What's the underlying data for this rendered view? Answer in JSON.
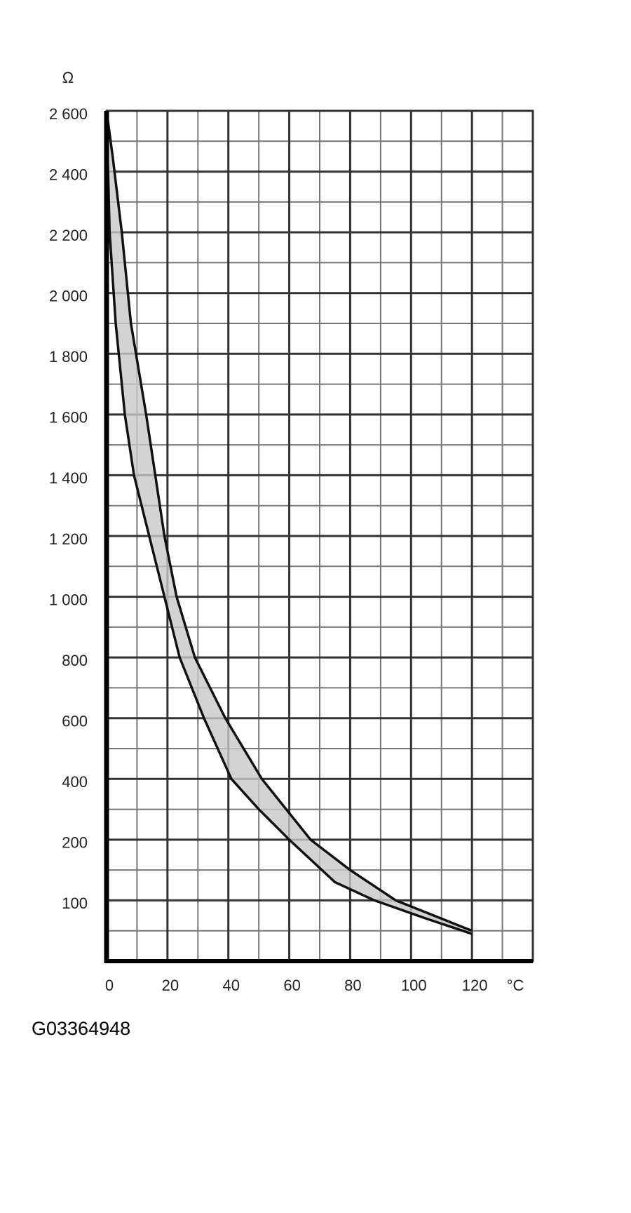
{
  "chart_data": {
    "type": "line",
    "y_unit": "Ω",
    "x_unit": "°C",
    "x_series": [
      {
        "name": "upper",
        "color": "#111111",
        "x": [
          0,
          2,
          5,
          8,
          13,
          19,
          23,
          29,
          39,
          51,
          67,
          80,
          95,
          110,
          120
        ],
        "values": [
          2600,
          2450,
          2200,
          1900,
          1600,
          1200,
          1000,
          800,
          600,
          400,
          200,
          150,
          100,
          70,
          50
        ]
      },
      {
        "name": "lower",
        "color": "#111111",
        "x": [
          0,
          1,
          3,
          6,
          9,
          14,
          19,
          24,
          32,
          41,
          50,
          60,
          75,
          88,
          105,
          120
        ],
        "values": [
          2600,
          2200,
          1900,
          1600,
          1400,
          1200,
          1000,
          800,
          600,
          400,
          300,
          200,
          130,
          100,
          70,
          45
        ]
      }
    ],
    "band_color": "#c8c8c8",
    "xlim": [
      0,
      140
    ],
    "xticks": [
      0,
      20,
      40,
      60,
      80,
      100,
      120
    ],
    "ylim": [
      0,
      2600
    ],
    "yticks": [
      100,
      200,
      400,
      600,
      800,
      {
        "value": 1000,
        "label": "1 000"
      },
      {
        "value": 1200,
        "label": "1 200"
      },
      {
        "value": 1400,
        "label": "1 400"
      },
      {
        "value": 1600,
        "label": "1 600"
      },
      {
        "value": 1800,
        "label": "1 800"
      },
      {
        "value": 2000,
        "label": "2 000"
      },
      {
        "value": 2200,
        "label": "2 200"
      },
      {
        "value": 2400,
        "label": "2 400"
      },
      {
        "value": 2600,
        "label": "2 600"
      }
    ],
    "grid": true,
    "footnote": "G03364948"
  }
}
